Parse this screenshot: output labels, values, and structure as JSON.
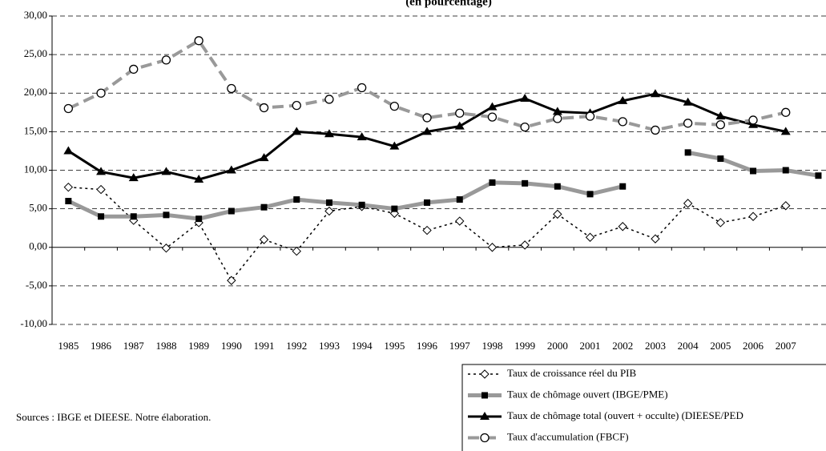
{
  "chart_data": {
    "type": "line",
    "subtitle": "(en pourcentage)",
    "categories": [
      "1985",
      "1986",
      "1987",
      "1988",
      "1989",
      "1990",
      "1991",
      "1992",
      "1993",
      "1994",
      "1995",
      "1996",
      "1997",
      "1998",
      "1999",
      "2000",
      "2001",
      "2002",
      "2003",
      "2004",
      "2005",
      "2006",
      "2007",
      null
    ],
    "series": [
      {
        "name": "Taux de croissance réel du PIB",
        "color": "#000000",
        "values": [
          7.8,
          7.5,
          3.5,
          -0.1,
          3.2,
          -4.3,
          1.0,
          -0.5,
          4.7,
          5.3,
          4.4,
          2.2,
          3.4,
          0.0,
          0.3,
          4.3,
          1.3,
          2.7,
          1.1,
          5.7,
          3.2,
          4.0,
          5.4,
          null
        ]
      },
      {
        "name": "Taux de chômage ouvert (IBGE/PME)",
        "color": "#999999",
        "values": [
          6.0,
          4.0,
          4.0,
          4.2,
          3.7,
          4.7,
          5.2,
          6.2,
          5.8,
          5.5,
          5.0,
          5.8,
          6.2,
          8.4,
          8.3,
          7.9,
          6.9,
          7.9,
          null,
          12.3,
          11.5,
          9.9,
          10.0,
          9.3
        ]
      },
      {
        "name": "Taux de chômage total (ouvert + occulte) (DIEESE/PED",
        "color": "#000000",
        "values": [
          12.5,
          9.8,
          9.0,
          9.8,
          8.8,
          10.0,
          11.6,
          15.0,
          14.7,
          14.3,
          13.1,
          15.0,
          15.7,
          18.2,
          19.3,
          17.6,
          17.4,
          19.0,
          19.9,
          18.8,
          17.0,
          15.9,
          15.0,
          null
        ]
      },
      {
        "name": "Taux d'accumulation (FBCF)",
        "color": "#999999",
        "values": [
          18.0,
          20.0,
          23.1,
          24.3,
          26.8,
          20.6,
          18.1,
          18.4,
          19.2,
          20.7,
          18.3,
          16.8,
          17.4,
          16.9,
          15.6,
          16.7,
          17.0,
          16.3,
          15.2,
          16.1,
          15.9,
          16.5,
          17.5,
          null
        ]
      }
    ],
    "ylim": [
      -10,
      30
    ],
    "yticks": [
      {
        "value": -10,
        "label": "-10,00"
      },
      {
        "value": -5,
        "label": "-5,00"
      },
      {
        "value": 0,
        "label": "0,00"
      },
      {
        "value": 5,
        "label": "5,00"
      },
      {
        "value": 10,
        "label": "10,00"
      },
      {
        "value": 15,
        "label": "15,00"
      },
      {
        "value": 20,
        "label": "20,00"
      },
      {
        "value": 25,
        "label": "25,00"
      },
      {
        "value": 30,
        "label": "30,00"
      }
    ],
    "grid": true,
    "legend": "lower right",
    "annotation": "Sources : IBGE et DIEESE. Notre élaboration."
  }
}
